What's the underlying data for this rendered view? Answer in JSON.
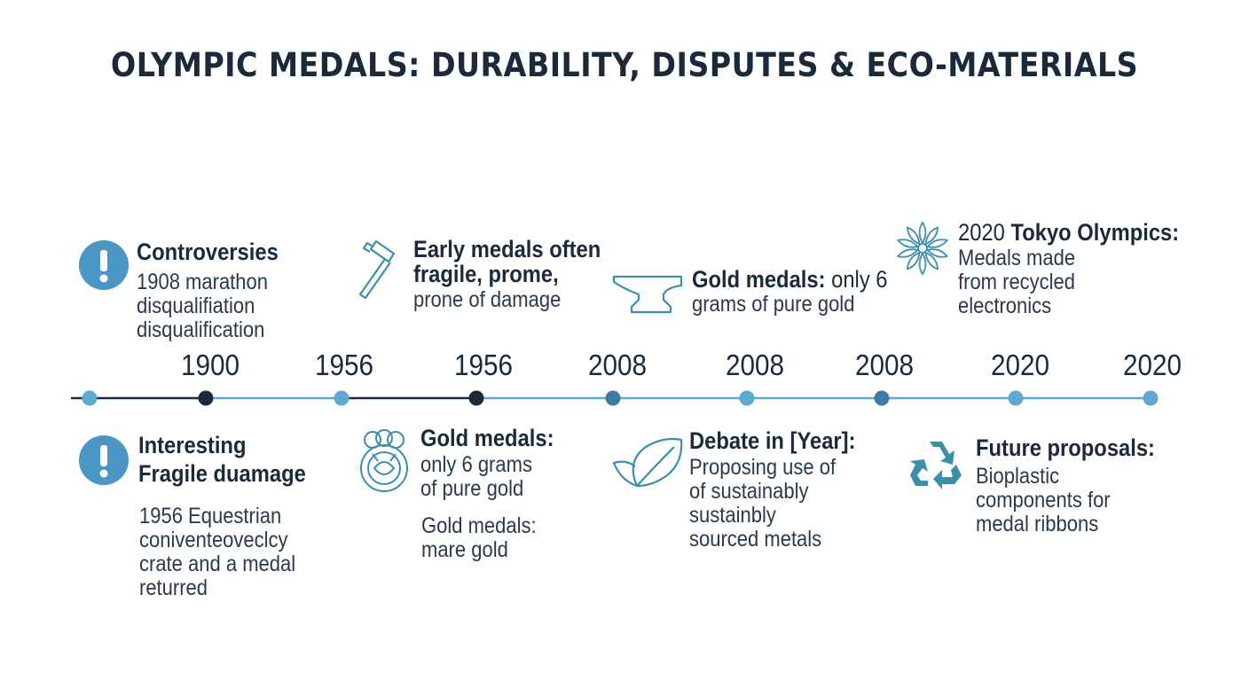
{
  "title": "OLYMPIC MEDALS: DURABILITY, DISPUTES & ECO-MATERIALS",
  "colors": {
    "dark": "#1b2a3b",
    "line": "#5ea9cf",
    "accent_blue": "#4a96c4",
    "teal": "#3b8fab"
  },
  "timeline": {
    "years": [
      "1900",
      "1956",
      "1956",
      "2008",
      "2008",
      "2008",
      "2020",
      "2020"
    ],
    "markers": [
      {
        "shade": "light"
      },
      {
        "shade": "dark"
      },
      {
        "shade": "light"
      },
      {
        "shade": "dark"
      },
      {
        "shade": "mid"
      },
      {
        "shade": "light"
      },
      {
        "shade": "mid"
      },
      {
        "shade": "light"
      },
      {
        "shade": "light"
      }
    ]
  },
  "top": [
    {
      "icon": "exclamation-icon",
      "heading": "Controversies",
      "lines": [
        "1908 marathon",
        "disqualifiation",
        "disqualification"
      ]
    },
    {
      "icon": "hammer-icon",
      "heading_lines": [
        "Early medals often",
        "fragile, prome,"
      ],
      "lines": [
        "prone of damage"
      ]
    },
    {
      "icon": "anvil-icon",
      "heading_bold": "Gold medals:",
      "heading_rest": " only 6",
      "lines": [
        "grams of pure gold"
      ]
    },
    {
      "icon": "flower-icon",
      "heading_pre": "2020 ",
      "heading_bold": "Tokyo Olympics:",
      "lines": [
        "Medals made",
        "from recycled",
        "electronics"
      ]
    }
  ],
  "bottom": [
    {
      "icon": "exclamation-icon",
      "heading_lines": [
        "Interesting",
        "Fragile duamage"
      ],
      "lines": [
        "1956 Equestrian",
        "conivente­oveclcy",
        "crate and a medal",
        "returred"
      ]
    },
    {
      "icon": "medal-icon",
      "heading": "Gold medals:",
      "lines": [
        "only 6 grams",
        "of pure gold"
      ],
      "extra": [
        "Gold medals:",
        "mare gold"
      ]
    },
    {
      "icon": "leaf-icon",
      "heading": "Debate in [Year]:",
      "lines": [
        "Proposing use of",
        "of sustainably",
        "sustainbly",
        "sourced metals"
      ]
    },
    {
      "icon": "recycle-icon",
      "heading": "Future proposals:",
      "lines": [
        "Bioplastic",
        "components for",
        "medal ribbons"
      ]
    }
  ]
}
